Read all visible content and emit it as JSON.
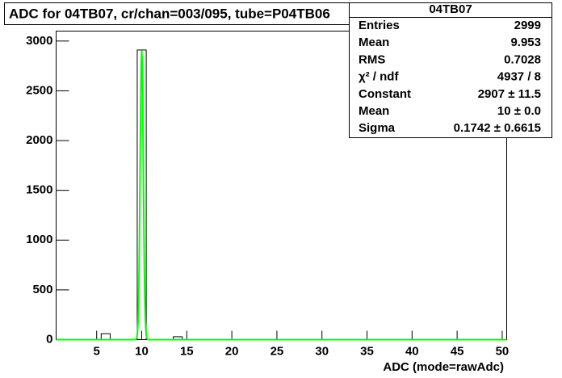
{
  "chart_data": {
    "type": "histogram",
    "title": "ADC for 04TB07,  cr/chan=003/095,  tube=P04TB06",
    "xlabel": "ADC (mode=rawAdc)",
    "bins": [
      0.5,
      1.5,
      2.5,
      3.5,
      4.5,
      5.5,
      6.5,
      7.5,
      8.5,
      9.5,
      10.5,
      11.5,
      12.5,
      13.5,
      14.5,
      15.5,
      16.5,
      17.5,
      18.5,
      19.5,
      20.5,
      21.5,
      22.5,
      23.5,
      24.5,
      25.5,
      26.5,
      27.5,
      28.5,
      29.5,
      30.5,
      31.5,
      32.5,
      33.5,
      34.5,
      35.5,
      36.5,
      37.5,
      38.5,
      39.5,
      40.5,
      41.5,
      42.5,
      43.5,
      44.5,
      45.5,
      46.5,
      47.5,
      48.5,
      49.5,
      50.5
    ],
    "values": [
      0,
      0,
      0,
      0,
      0,
      60,
      0,
      0,
      0,
      2910,
      0,
      0,
      0,
      29,
      0,
      0,
      0,
      0,
      0,
      0,
      0,
      0,
      0,
      0,
      0,
      0,
      0,
      0,
      0,
      0,
      0,
      0,
      0,
      0,
      0,
      0,
      0,
      0,
      0,
      0,
      0,
      0,
      0,
      0,
      0,
      0,
      0,
      0,
      0,
      0
    ],
    "color": "#000000",
    "fit": {
      "type": "gaus",
      "constant": 2907,
      "mean": 10,
      "sigma": 0.1742,
      "color": "#00ff00"
    },
    "xlim": [
      0.5,
      50.5
    ],
    "ylim": [
      0,
      3100
    ],
    "xticks": [
      5,
      10,
      15,
      20,
      25,
      30,
      35,
      40,
      45,
      50
    ],
    "yticks": [
      0,
      500,
      1000,
      1500,
      2000,
      2500,
      3000
    ],
    "stats": {
      "title": "04TB07",
      "rows": [
        [
          "Entries",
          "2999"
        ],
        [
          "Mean",
          "9.953"
        ],
        [
          "RMS",
          "0.7028"
        ],
        [
          "χ² / ndf",
          "4937 / 8"
        ],
        [
          "Constant",
          "2907 ± 11.5"
        ],
        [
          "Mean",
          "10 ± 0.0"
        ],
        [
          "Sigma",
          "0.1742 ± 0.6615"
        ]
      ]
    }
  }
}
